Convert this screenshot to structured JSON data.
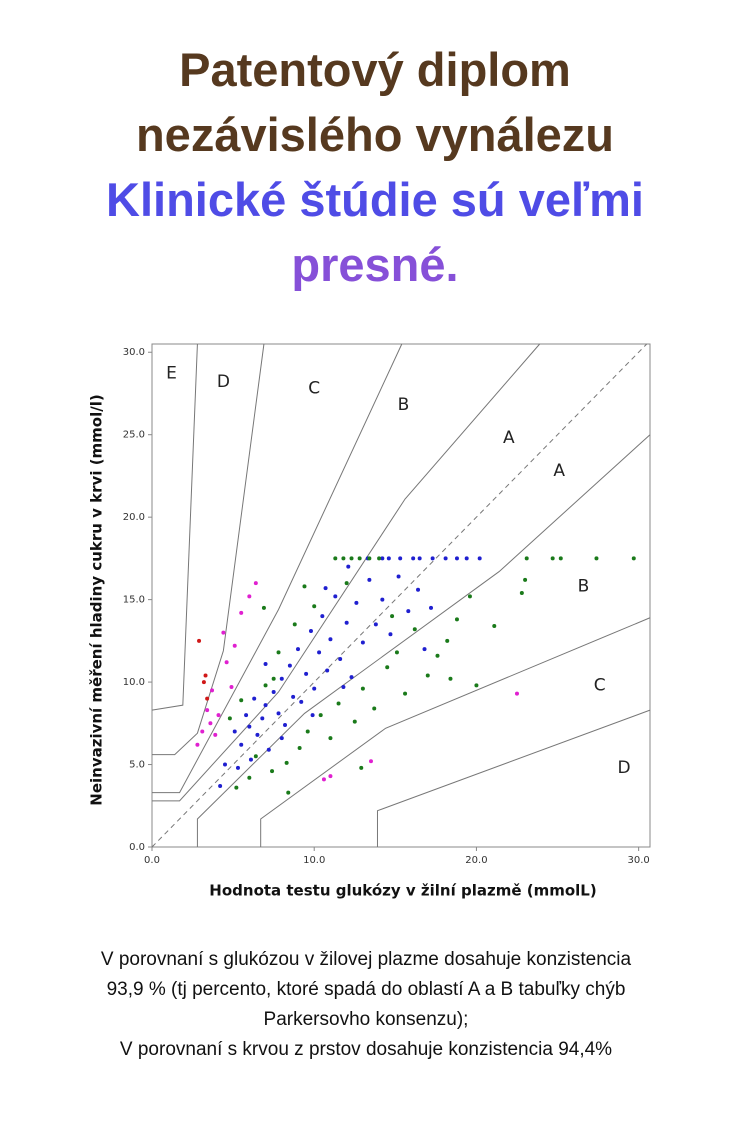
{
  "header": {
    "line1": "Patentový diplom",
    "line2": "nezávislého vynálezu",
    "line3": "Klinické štúdie sú veľmi",
    "line4": "presné."
  },
  "chart_data": {
    "type": "scatter",
    "x_label": "Hodnota testu glukózy v žilní plazmě (mmolL)",
    "y_label": "Neinvazivní měření hladiny cukru v krvi (mmol/l)",
    "xlim": [
      0,
      30.7
    ],
    "ylim": [
      0,
      30.5
    ],
    "xticks": [
      {
        "value": 0,
        "label": "0.0"
      },
      {
        "value": 10,
        "label": "10.0"
      },
      {
        "value": 20,
        "label": "20.0"
      },
      {
        "value": 30,
        "label": "30.0"
      }
    ],
    "yticks": [
      {
        "value": 0,
        "label": "0.0"
      },
      {
        "value": 5,
        "label": "5.0"
      },
      {
        "value": 10,
        "label": "10.0"
      },
      {
        "value": 15,
        "label": "15.0"
      },
      {
        "value": 20,
        "label": "20.0"
      },
      {
        "value": 25,
        "label": "25.0"
      },
      {
        "value": 30,
        "label": "30.0"
      }
    ],
    "boundaries": [
      {
        "x": [
          0,
          30.5
        ],
        "y": [
          0,
          30.5
        ],
        "dashed": true
      },
      {
        "x": [
          0,
          1.7,
          7.8,
          15.6,
          23.9
        ],
        "y": [
          2.8,
          2.8,
          9.4,
          21.1,
          30.5
        ]
      },
      {
        "x": [
          2.8,
          2.8,
          9.4,
          21.4,
          30.7
        ],
        "y": [
          0,
          1.7,
          8.1,
          16.7,
          25
        ]
      },
      {
        "x": [
          0,
          1.7,
          7.8,
          15.4
        ],
        "y": [
          3.3,
          3.3,
          14.4,
          30.5
        ]
      },
      {
        "x": [
          6.7,
          6.7,
          14.4,
          30.7
        ],
        "y": [
          0,
          1.7,
          7.2,
          13.9
        ]
      },
      {
        "x": [
          0,
          1.4,
          2.8,
          4.4,
          6.9
        ],
        "y": [
          5.6,
          5.6,
          6.9,
          11.9,
          30.5
        ]
      },
      {
        "x": [
          13.9,
          13.9,
          30.7
        ],
        "y": [
          0,
          2.2,
          8.3
        ]
      },
      {
        "x": [
          0,
          1.9,
          2.8
        ],
        "y": [
          8.3,
          8.6,
          30.5
        ]
      }
    ],
    "annotations": [
      {
        "text": "E",
        "x": 1.2,
        "y": 28.7
      },
      {
        "text": "D",
        "x": 4.4,
        "y": 28.2
      },
      {
        "text": "C",
        "x": 10,
        "y": 27.8
      },
      {
        "text": "B",
        "x": 15.5,
        "y": 26.8
      },
      {
        "text": "A",
        "x": 22,
        "y": 24.8
      },
      {
        "text": "A",
        "x": 25.1,
        "y": 22.8
      },
      {
        "text": "B",
        "x": 26.6,
        "y": 15.8
      },
      {
        "text": "C",
        "x": 27.6,
        "y": 9.8
      },
      {
        "text": "D",
        "x": 29.1,
        "y": 4.8
      }
    ],
    "series": [
      {
        "color": "#1f1fd0",
        "x": [
          13.3,
          14.2,
          14.6,
          15.3,
          16.1,
          16.5,
          17.3,
          18.1,
          18.8,
          19.4,
          20.2,
          5.1,
          5.5,
          5.8,
          6.0,
          6.3,
          6.5,
          6.8,
          7.0,
          7.2,
          7.5,
          7.8,
          8.0,
          8.2,
          8.5,
          8.7,
          9.0,
          9.2,
          9.5,
          9.8,
          10.0,
          10.3,
          10.5,
          10.8,
          11.0,
          11.3,
          11.6,
          12.0,
          12.3,
          12.6,
          13.0,
          13.4,
          13.8,
          14.2,
          14.7,
          15.2,
          15.8,
          16.4,
          4.5,
          4.2,
          5.3,
          6.1,
          9.9,
          11.8,
          8.0,
          7.0,
          10.7,
          12.1,
          16.8,
          17.2
        ],
        "y": [
          17.5,
          17.5,
          17.5,
          17.5,
          17.5,
          17.5,
          17.5,
          17.5,
          17.5,
          17.5,
          17.5,
          7.0,
          6.2,
          8.0,
          7.3,
          9.0,
          6.8,
          7.8,
          8.6,
          5.9,
          9.4,
          8.1,
          10.2,
          7.4,
          11.0,
          9.1,
          12.0,
          8.8,
          10.5,
          13.1,
          9.6,
          11.8,
          14.0,
          10.7,
          12.6,
          15.2,
          11.4,
          13.6,
          10.3,
          14.8,
          12.4,
          16.2,
          13.5,
          15.0,
          12.9,
          16.4,
          14.3,
          15.6,
          5.0,
          3.7,
          4.8,
          5.3,
          8.0,
          9.7,
          6.6,
          11.1,
          15.7,
          17.0,
          12.0,
          14.5
        ]
      },
      {
        "color": "#1a7a1a",
        "x": [
          11.3,
          11.8,
          12.3,
          12.8,
          13.4,
          14.0,
          23.1,
          24.7,
          25.2,
          29.7,
          27.4,
          4.8,
          5.5,
          6.0,
          6.4,
          7.0,
          7.4,
          7.8,
          8.3,
          8.8,
          9.1,
          9.6,
          10.0,
          10.4,
          11.0,
          11.5,
          12.0,
          12.5,
          13.0,
          13.7,
          14.5,
          15.1,
          15.6,
          16.2,
          17.0,
          17.6,
          18.2,
          18.8,
          19.6,
          20.0,
          21.1,
          22.8,
          23.0,
          5.2,
          8.4,
          6.9,
          9.4,
          12.9,
          18.4,
          14.8,
          7.5
        ],
        "y": [
          17.5,
          17.5,
          17.5,
          17.5,
          17.5,
          17.5,
          17.5,
          17.5,
          17.5,
          17.5,
          17.5,
          7.8,
          8.9,
          4.2,
          5.5,
          9.8,
          4.6,
          11.8,
          5.1,
          13.5,
          6.0,
          7.0,
          14.6,
          8.0,
          6.6,
          8.7,
          16.0,
          7.6,
          9.6,
          8.4,
          10.9,
          11.8,
          9.3,
          13.2,
          10.4,
          11.6,
          12.5,
          13.8,
          15.2,
          9.8,
          13.4,
          15.4,
          16.2,
          3.6,
          3.3,
          14.5,
          15.8,
          4.8,
          10.2,
          14.0,
          10.2
        ]
      },
      {
        "color": "#e020d0",
        "x": [
          2.8,
          3.1,
          3.4,
          3.7,
          3.9,
          4.1,
          4.4,
          4.6,
          4.9,
          5.1,
          5.5,
          6.0,
          6.4,
          3.6,
          11.0,
          10.6,
          13.5,
          22.5
        ],
        "y": [
          6.2,
          7.0,
          8.3,
          9.5,
          6.8,
          8.0,
          13.0,
          11.2,
          9.7,
          12.2,
          14.2,
          15.2,
          16.0,
          7.5,
          4.3,
          4.1,
          5.2,
          9.3
        ]
      },
      {
        "color": "#d01818",
        "x": [
          2.9,
          3.2,
          3.3,
          3.4
        ],
        "y": [
          12.5,
          10.0,
          10.4,
          9.0
        ]
      }
    ]
  },
  "caption": {
    "line1": "V porovnaní s glukózou v žilovej plazme dosahuje konzistencia",
    "line2": "93,9 % (tj percento, ktoré spadá do oblastí A a B tabuľky chýb",
    "line3": "Parkersovho konsenzu);",
    "line4": "V porovnaní s krvou z prstov dosahuje konzistencia 94,4%"
  }
}
